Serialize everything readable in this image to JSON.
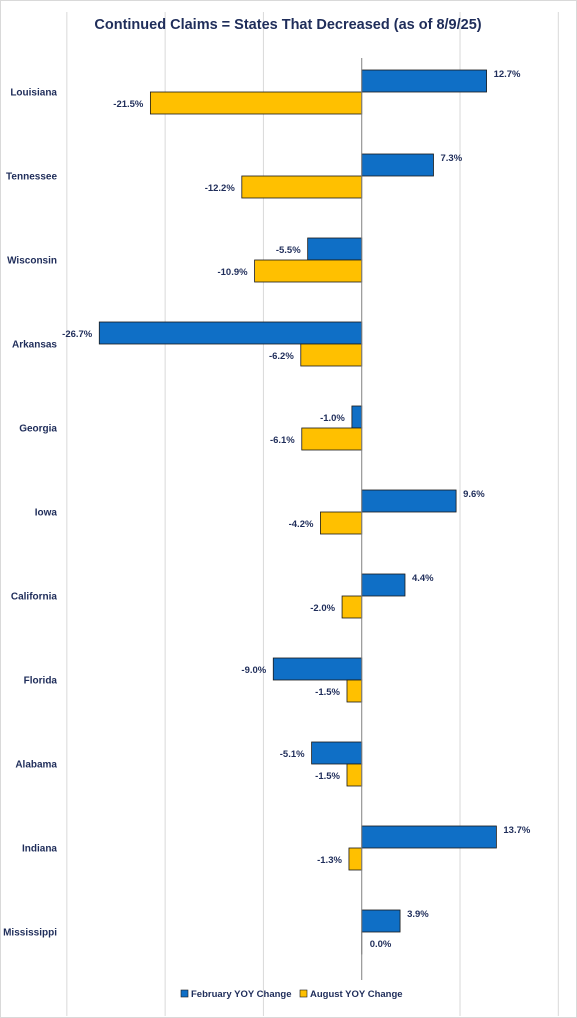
{
  "chart_data": {
    "type": "bar",
    "orientation": "horizontal",
    "title": "Continued Claims = States That Decreased (as of 8/9/25)",
    "categories": [
      "Louisiana",
      "Tennessee",
      "Wisconsin",
      "Arkansas",
      "Georgia",
      "Iowa",
      "California",
      "Florida",
      "Alabama",
      "Indiana",
      "Mississippi"
    ],
    "series": [
      {
        "name": "February YOY Change",
        "color": "#0f6fc6",
        "values": [
          12.7,
          7.3,
          -5.5,
          -26.7,
          -1.0,
          9.6,
          4.4,
          -9.0,
          -5.1,
          13.7,
          3.9
        ],
        "labels": [
          "12.7%",
          "7.3%",
          "-5.5%",
          "-26.7%",
          "-1.0%",
          "9.6%",
          "4.4%",
          "-9.0%",
          "-5.1%",
          "13.7%",
          "3.9%"
        ]
      },
      {
        "name": "August YOY Change",
        "color": "#ffc000",
        "values": [
          -21.5,
          -12.2,
          -10.9,
          -6.2,
          -6.1,
          -4.2,
          -2.0,
          -1.5,
          -1.5,
          -1.3,
          0.0
        ],
        "labels": [
          "-21.5%",
          "-12.2%",
          "-10.9%",
          "-6.2%",
          "-6.1%",
          "-4.2%",
          "-2.0%",
          "-1.5%",
          "-1.5%",
          "-1.3%",
          "0.0%"
        ]
      }
    ],
    "xlim": [
      -36.8,
      21.9
    ],
    "grid": true,
    "legend": "bottom"
  }
}
